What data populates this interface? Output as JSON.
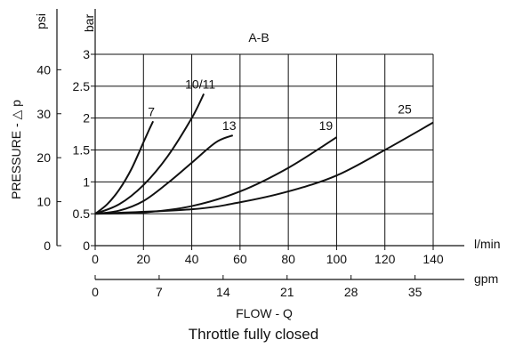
{
  "chart_data": {
    "type": "line",
    "title": "A-B",
    "caption": "Throttle fully closed",
    "xlabel": "FLOW - Q",
    "ylabel": "PRESSURE - △ p",
    "x_unit_primary": "l/min",
    "x_unit_secondary": "gpm",
    "y_unit_primary": "bar",
    "y_unit_secondary": "psi",
    "xlim": [
      0,
      140
    ],
    "ylim": [
      0,
      3
    ],
    "grid": true,
    "x_ticks": [
      "0",
      "20",
      "40",
      "60",
      "80",
      "100",
      "120",
      "140"
    ],
    "x_ticks_gpm": [
      "0",
      "7",
      "14",
      "21",
      "28",
      "35"
    ],
    "y_ticks": [
      "0",
      "0.5",
      "1",
      "1.5",
      "2",
      "2.5",
      "3"
    ],
    "y_ticks_psi": [
      "0",
      "10",
      "20",
      "30",
      "40"
    ],
    "series": [
      {
        "name": "7",
        "x": [
          0,
          5,
          10,
          15,
          20,
          22.5,
          24
        ],
        "y": [
          0.5,
          0.65,
          0.88,
          1.2,
          1.62,
          1.83,
          1.95
        ]
      },
      {
        "name": "10/11",
        "x": [
          0,
          10,
          20,
          30,
          40,
          45
        ],
        "y": [
          0.5,
          0.65,
          0.95,
          1.4,
          2.0,
          2.38
        ]
      },
      {
        "name": "13",
        "x": [
          0,
          10,
          20,
          30,
          40,
          50,
          57
        ],
        "y": [
          0.5,
          0.55,
          0.7,
          0.98,
          1.3,
          1.62,
          1.73
        ]
      },
      {
        "name": "19",
        "x": [
          0,
          20,
          40,
          60,
          80,
          100
        ],
        "y": [
          0.5,
          0.52,
          0.62,
          0.85,
          1.22,
          1.7
        ]
      },
      {
        "name": "25",
        "x": [
          0,
          40,
          60,
          80,
          100,
          120,
          140
        ],
        "y": [
          0.5,
          0.57,
          0.68,
          0.85,
          1.1,
          1.5,
          1.93
        ]
      }
    ]
  }
}
